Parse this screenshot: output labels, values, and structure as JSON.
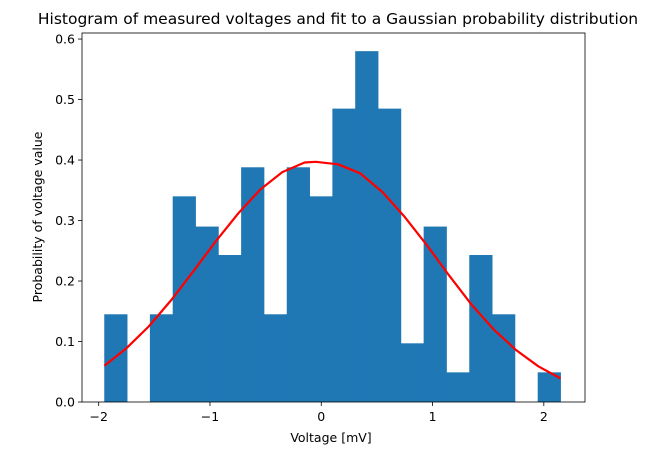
{
  "chart_data": {
    "type": "bar",
    "title": "Histogram of measured voltages and fit to a Gaussian probability distribution",
    "xlabel": "Voltage [mV]",
    "ylabel": "Probability of voltage value",
    "xlim": [
      -2.15,
      2.37
    ],
    "ylim": [
      0.0,
      0.61
    ],
    "xticks": [
      -2,
      -1,
      0,
      1,
      2
    ],
    "xtick_labels": [
      "−2",
      "−1",
      "0",
      "1",
      "2"
    ],
    "yticks": [
      0.0,
      0.1,
      0.2,
      0.3,
      0.4,
      0.5,
      0.6
    ],
    "ytick_labels": [
      "0.0",
      "0.1",
      "0.2",
      "0.3",
      "0.4",
      "0.5",
      "0.6"
    ],
    "grid": false,
    "histogram": {
      "bin_edges": [
        -1.95,
        -1.745,
        -1.54,
        -1.335,
        -1.13,
        -0.925,
        -0.72,
        -0.515,
        -0.31,
        -0.105,
        0.1,
        0.305,
        0.51,
        0.715,
        0.92,
        1.125,
        1.33,
        1.535,
        1.74,
        1.945,
        2.15
      ],
      "values": [
        0.145,
        0.0,
        0.145,
        0.34,
        0.29,
        0.243,
        0.388,
        0.145,
        0.388,
        0.34,
        0.485,
        0.58,
        0.485,
        0.097,
        0.29,
        0.049,
        0.243,
        0.145,
        0.0,
        0.049
      ],
      "color": "#1f77b4"
    },
    "fit_line": {
      "x": [
        -1.95,
        -1.75,
        -1.55,
        -1.35,
        -1.15,
        -0.95,
        -0.75,
        -0.55,
        -0.35,
        -0.15,
        -0.05,
        0.15,
        0.35,
        0.55,
        0.75,
        0.95,
        1.15,
        1.35,
        1.55,
        1.75,
        1.95,
        2.15
      ],
      "y": [
        0.06,
        0.089,
        0.125,
        0.168,
        0.216,
        0.265,
        0.311,
        0.351,
        0.38,
        0.396,
        0.397,
        0.393,
        0.378,
        0.347,
        0.306,
        0.259,
        0.209,
        0.161,
        0.12,
        0.086,
        0.059,
        0.039
      ],
      "color": "#ff0000"
    }
  }
}
